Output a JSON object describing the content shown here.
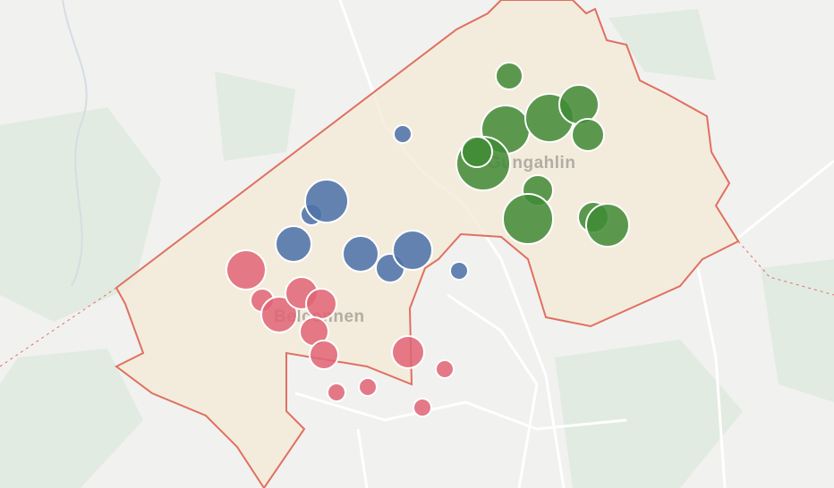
{
  "map": {
    "labels": [
      "Gungahlin",
      "Belconnen"
    ]
  }
}
